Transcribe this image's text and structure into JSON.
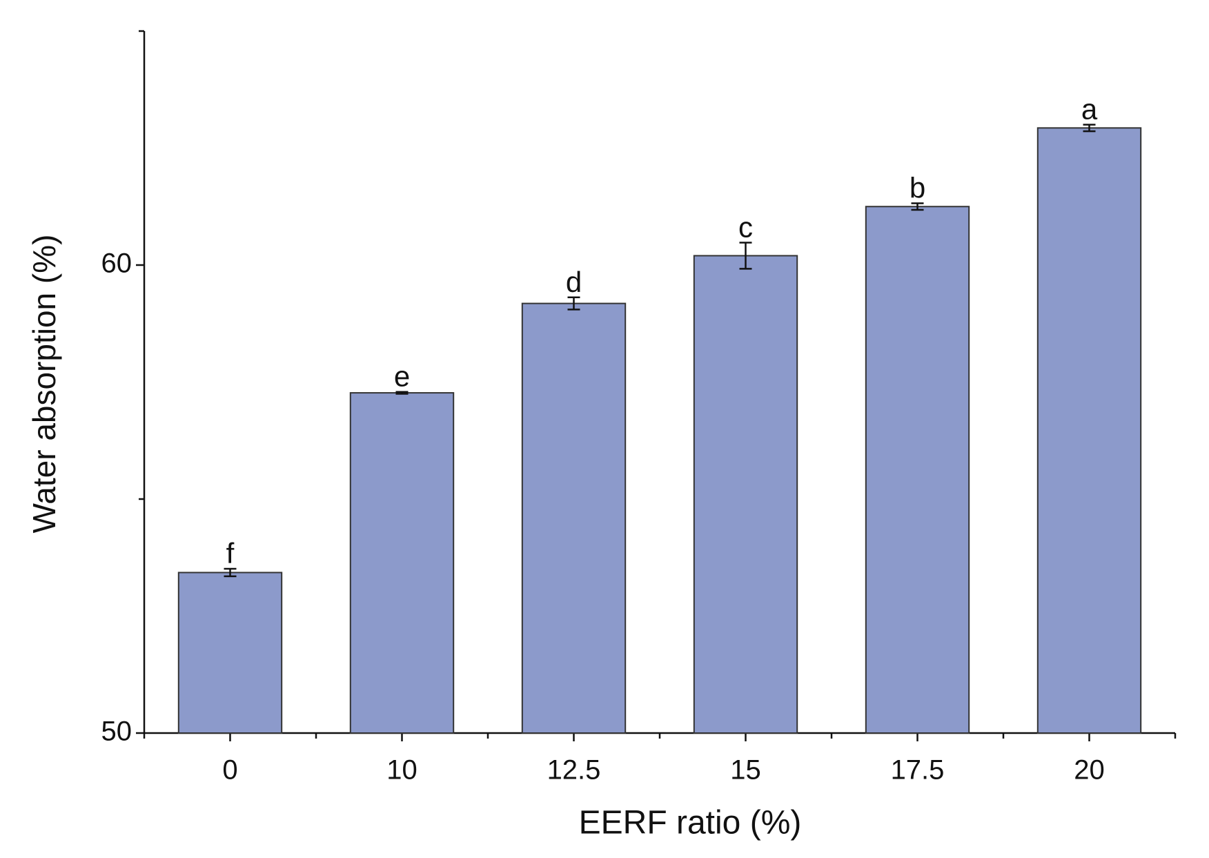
{
  "chart_data": {
    "type": "bar",
    "x_label": "EERF ratio (%)",
    "y_label": "Water absorption (%)",
    "categories": [
      "0",
      "10",
      "12.5",
      "15",
      "17.5",
      "20"
    ],
    "values": [
      53.43,
      57.27,
      59.18,
      60.2,
      61.25,
      62.93
    ],
    "errors": [
      0.08,
      0.02,
      0.13,
      0.28,
      0.07,
      0.07
    ],
    "significance_labels": [
      "f",
      "e",
      "d",
      "c",
      "b",
      "a"
    ],
    "color": "#8c9acb",
    "ylim": [
      50,
      65
    ],
    "yticks": [
      50,
      60
    ],
    "minor_yticks": [
      55,
      65
    ]
  }
}
